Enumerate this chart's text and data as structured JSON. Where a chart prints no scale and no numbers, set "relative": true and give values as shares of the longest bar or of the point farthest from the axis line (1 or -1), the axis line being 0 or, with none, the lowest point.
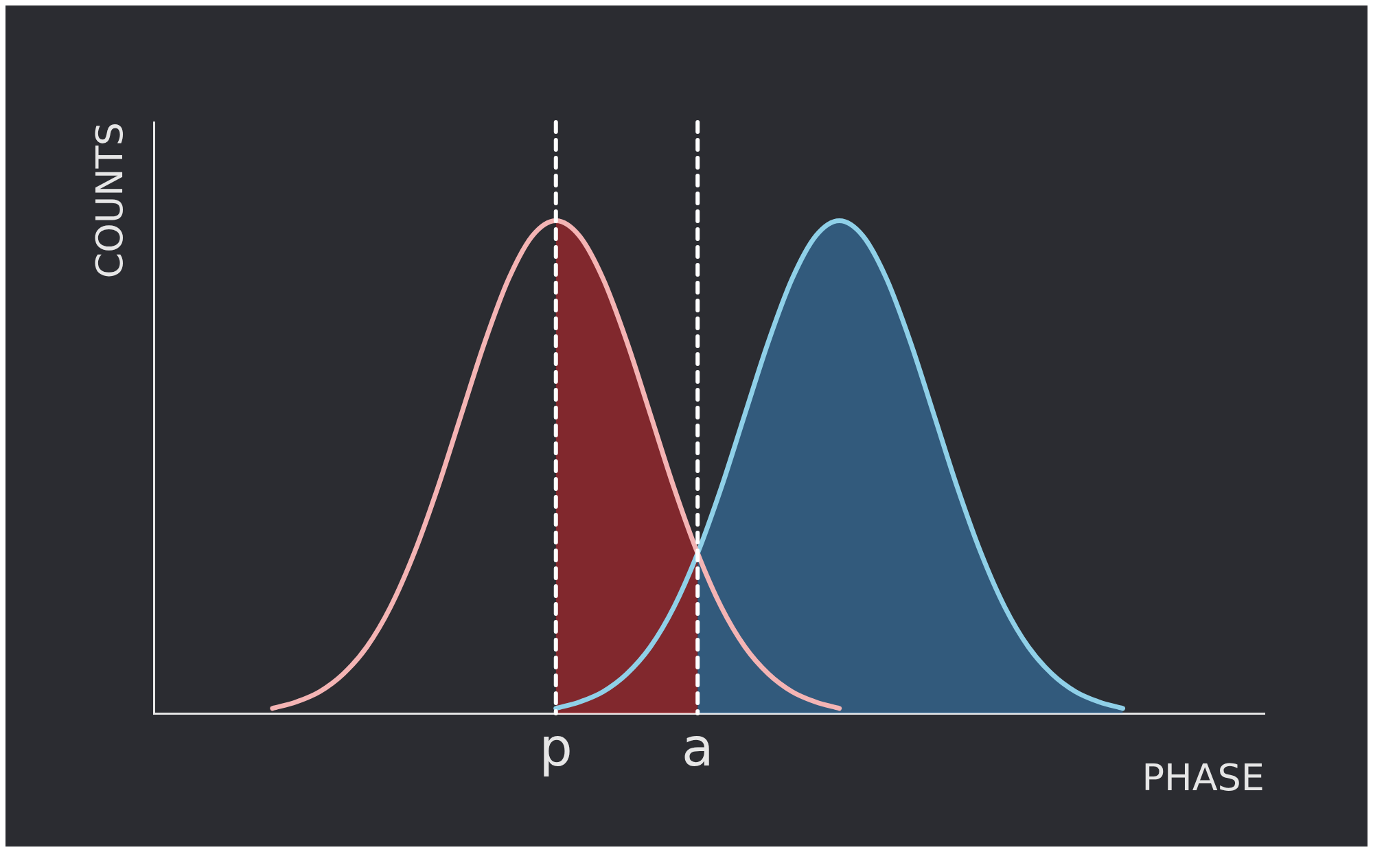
{
  "chart_data": {
    "type": "line",
    "xlabel": "PHASE",
    "ylabel": "COUNTS",
    "relative": true,
    "categories": [
      null,
      null,
      null,
      null,
      null,
      null,
      null,
      null,
      null,
      null,
      null,
      null,
      null,
      null,
      null,
      null,
      null,
      "p",
      null,
      null,
      null,
      null,
      null,
      "a",
      null,
      null,
      null,
      null,
      null,
      null,
      null,
      null,
      null,
      null,
      null,
      null,
      null,
      null,
      null,
      null,
      null,
      null,
      null,
      null,
      null,
      null,
      null,
      null
    ],
    "series": [
      {
        "type": "area",
        "color": "#d8232a",
        "values": [
          null,
          null,
          null,
          null,
          null,
          null,
          null,
          null,
          null,
          null,
          null,
          null,
          null,
          null,
          null,
          null,
          null,
          1,
          0.969,
          0.882,
          0.755,
          0.607,
          0.458,
          0.325,
          null,
          null,
          null,
          null,
          null,
          null,
          null,
          null,
          null,
          null,
          null,
          null,
          null,
          null,
          null,
          null,
          null,
          null,
          null,
          null,
          null,
          null,
          null,
          null
        ]
      },
      {
        "type": "area",
        "color": "#3a87c8",
        "values": [
          null,
          null,
          null,
          null,
          null,
          null,
          null,
          null,
          null,
          null,
          null,
          null,
          null,
          null,
          null,
          null,
          null,
          null,
          null,
          null,
          null,
          null,
          null,
          0.325,
          0.458,
          0.607,
          0.755,
          0.882,
          0.969,
          1,
          0.969,
          0.882,
          0.755,
          0.607,
          0.458,
          0.325,
          0.216,
          0.135,
          0.08,
          0.044,
          0.023,
          0.01,
          null,
          null,
          null,
          null,
          null,
          null
        ]
      },
      {
        "color": "#f4b4b4",
        "values": [
          null,
          null,
          null,
          null,
          null,
          0.01,
          0.023,
          0.044,
          0.08,
          0.135,
          0.216,
          0.325,
          0.458,
          0.607,
          0.755,
          0.882,
          0.969,
          1,
          0.969,
          0.882,
          0.755,
          0.607,
          0.458,
          0.325,
          0.216,
          0.135,
          0.08,
          0.044,
          0.023,
          0.01,
          null,
          null,
          null,
          null,
          null,
          null,
          null,
          null,
          null,
          null,
          null,
          null,
          null,
          null,
          null,
          null,
          null,
          null
        ]
      },
      {
        "color": "#8fd0e8",
        "values": [
          null,
          null,
          null,
          null,
          null,
          null,
          null,
          null,
          null,
          null,
          null,
          null,
          null,
          null,
          null,
          null,
          null,
          0.01,
          0.023,
          0.044,
          0.08,
          0.135,
          0.216,
          0.325,
          0.458,
          0.607,
          0.755,
          0.882,
          0.969,
          1,
          0.969,
          0.882,
          0.755,
          0.607,
          0.458,
          0.325,
          0.216,
          0.135,
          0.08,
          0.044,
          0.023,
          0.01,
          null,
          null,
          null,
          null,
          null,
          null
        ]
      }
    ],
    "ref_lines": [
      {
        "axis": "x",
        "value": "p",
        "color": "#ffffff",
        "line_style": "dashed"
      },
      {
        "axis": "x",
        "value": "a",
        "color": "#ffffff",
        "line_style": "dashed"
      }
    ]
  }
}
